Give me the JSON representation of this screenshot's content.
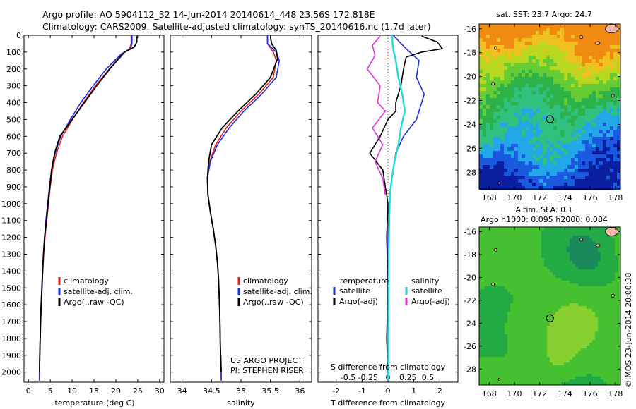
{
  "header": {
    "line1": "Argo profile: AO 5904112_32 14-Jun-2014 20140614_448 23.56S 172.818E",
    "line2": "Climatology: CARS2009. Satellite-adjusted climatology: synTS_20140616.nc (1.7d later)"
  },
  "colors": {
    "climatology": "#e8201a",
    "satellite": "#1a30e0",
    "argo": "#000000",
    "temp_diff_sat": "#1a30e0",
    "sal_diff_sat": "#23d8d8",
    "sal_diff_argo": "#e030e0",
    "sst_map_palette": [
      "#0a1ea0",
      "#1a5ae0",
      "#22a8e8",
      "#30c080",
      "#2db24a",
      "#66cc33",
      "#b8d820",
      "#f0c020",
      "#f08a10"
    ],
    "sla_map_palette": [
      "#1a8a5a",
      "#22aa44",
      "#44c030",
      "#88d030",
      "#c8d830",
      "#f0c030"
    ],
    "land": "#f5b8a8"
  },
  "chart_data": [
    {
      "id": "temperature",
      "type": "line",
      "xlabel": "temperature (deg C)",
      "ylabel": "",
      "xlim": [
        -1,
        31
      ],
      "ylim": [
        2060,
        0
      ],
      "x_ticks": [
        "0",
        "5",
        "10",
        "15",
        "20",
        "25",
        "30"
      ],
      "y_ticks": [
        "0",
        "100",
        "200",
        "300",
        "400",
        "500",
        "600",
        "700",
        "800",
        "900",
        "1000",
        "1100",
        "1200",
        "1300",
        "1400",
        "1500",
        "1600",
        "1700",
        "1800",
        "1900",
        "2000"
      ],
      "legend": [
        "climatology",
        "satellite-adj. clim.",
        "Argo(..raw -QC)"
      ],
      "series": [
        {
          "name": "climatology",
          "key": "climatology",
          "points": [
            [
              23.5,
              0
            ],
            [
              23.5,
              50
            ],
            [
              23.1,
              80
            ],
            [
              21.5,
              110
            ],
            [
              18.5,
              200
            ],
            [
              15.3,
              300
            ],
            [
              12.6,
              400
            ],
            [
              10.1,
              500
            ],
            [
              7.8,
              600
            ],
            [
              6.4,
              700
            ],
            [
              5.5,
              800
            ],
            [
              5.0,
              900
            ],
            [
              4.6,
              1000
            ],
            [
              4.2,
              1100
            ],
            [
              3.8,
              1200
            ],
            [
              3.5,
              1300
            ],
            [
              3.3,
              1400
            ],
            [
              3.1,
              1500
            ],
            [
              2.9,
              1600
            ],
            [
              2.8,
              1700
            ],
            [
              2.7,
              1800
            ],
            [
              2.6,
              1900
            ],
            [
              2.55,
              2000
            ],
            [
              2.5,
              2050
            ]
          ]
        },
        {
          "name": "satellite-adj. clim.",
          "key": "satellite",
          "points": [
            [
              23.7,
              0
            ],
            [
              23.7,
              50
            ],
            [
              23.3,
              80
            ],
            [
              21.3,
              110
            ],
            [
              17.8,
              200
            ],
            [
              14.8,
              300
            ],
            [
              12.0,
              400
            ],
            [
              9.6,
              500
            ],
            [
              7.4,
              600
            ],
            [
              6.1,
              700
            ],
            [
              5.3,
              800
            ],
            [
              4.8,
              900
            ],
            [
              4.4,
              1000
            ],
            [
              4.0,
              1100
            ],
            [
              3.7,
              1200
            ],
            [
              3.45,
              1300
            ],
            [
              3.25,
              1400
            ],
            [
              3.05,
              1500
            ],
            [
              2.9,
              1600
            ],
            [
              2.78,
              1700
            ],
            [
              2.68,
              1800
            ],
            [
              2.58,
              1900
            ],
            [
              2.52,
              2000
            ],
            [
              2.5,
              2050
            ]
          ]
        },
        {
          "name": "Argo(..raw -QC)",
          "key": "argo",
          "points": [
            [
              24.8,
              5
            ],
            [
              24.8,
              40
            ],
            [
              24.2,
              70
            ],
            [
              22.0,
              100
            ],
            [
              18.6,
              200
            ],
            [
              15.6,
              300
            ],
            [
              12.8,
              400
            ],
            [
              10.0,
              500
            ],
            [
              7.2,
              600
            ],
            [
              6.0,
              700
            ],
            [
              5.3,
              800
            ],
            [
              4.9,
              900
            ],
            [
              4.5,
              1000
            ],
            [
              4.1,
              1100
            ],
            [
              3.7,
              1200
            ],
            [
              3.45,
              1300
            ],
            [
              3.25,
              1400
            ],
            [
              3.1,
              1500
            ],
            [
              2.95,
              1600
            ],
            [
              2.8,
              1700
            ],
            [
              2.7,
              1800
            ],
            [
              2.6,
              1900
            ],
            [
              2.55,
              2000
            ]
          ]
        }
      ]
    },
    {
      "id": "salinity",
      "type": "line",
      "xlabel": "salinity",
      "xlim": [
        33.8,
        36.2
      ],
      "ylim": [
        2060,
        0
      ],
      "x_ticks": [
        "34",
        "34.5",
        "35",
        "35.5",
        "36"
      ],
      "legend": [
        "climatology",
        "satellite-adj. clim.",
        "Argo(..raw -QC)"
      ],
      "annotation": [
        "US ARGO PROJECT",
        "PI: STEPHEN RISER"
      ],
      "series": [
        {
          "name": "climatology",
          "key": "climatology",
          "points": [
            [
              35.45,
              0
            ],
            [
              35.45,
              50
            ],
            [
              35.55,
              100
            ],
            [
              35.6,
              150
            ],
            [
              35.55,
              250
            ],
            [
              35.3,
              350
            ],
            [
              35.0,
              450
            ],
            [
              34.75,
              550
            ],
            [
              34.57,
              650
            ],
            [
              34.47,
              750
            ],
            [
              34.43,
              850
            ],
            [
              34.44,
              950
            ],
            [
              34.48,
              1050
            ],
            [
              34.53,
              1150
            ],
            [
              34.57,
              1250
            ],
            [
              34.6,
              1350
            ],
            [
              34.62,
              1450
            ],
            [
              34.63,
              1550
            ],
            [
              34.64,
              1650
            ],
            [
              34.645,
              1750
            ],
            [
              34.65,
              1850
            ],
            [
              34.66,
              1950
            ],
            [
              34.665,
              2050
            ]
          ]
        },
        {
          "name": "satellite-adj. clim.",
          "key": "satellite",
          "points": [
            [
              35.45,
              0
            ],
            [
              35.45,
              50
            ],
            [
              35.6,
              100
            ],
            [
              35.65,
              150
            ],
            [
              35.6,
              250
            ],
            [
              35.35,
              350
            ],
            [
              35.05,
              450
            ],
            [
              34.8,
              550
            ],
            [
              34.6,
              650
            ],
            [
              34.48,
              750
            ],
            [
              34.43,
              850
            ],
            [
              34.44,
              950
            ],
            [
              34.48,
              1050
            ],
            [
              34.53,
              1150
            ],
            [
              34.57,
              1250
            ],
            [
              34.6,
              1350
            ],
            [
              34.62,
              1450
            ],
            [
              34.63,
              1550
            ],
            [
              34.64,
              1650
            ],
            [
              34.645,
              1750
            ],
            [
              34.65,
              1850
            ],
            [
              34.66,
              1950
            ],
            [
              34.665,
              2050
            ]
          ]
        },
        {
          "name": "Argo(..raw -QC)",
          "key": "argo",
          "points": [
            [
              35.5,
              10
            ],
            [
              35.52,
              50
            ],
            [
              35.6,
              90
            ],
            [
              35.62,
              140
            ],
            [
              35.5,
              250
            ],
            [
              35.25,
              350
            ],
            [
              34.95,
              450
            ],
            [
              34.68,
              550
            ],
            [
              34.5,
              650
            ],
            [
              34.45,
              750
            ],
            [
              34.43,
              850
            ],
            [
              34.44,
              950
            ],
            [
              34.48,
              1050
            ],
            [
              34.53,
              1150
            ],
            [
              34.57,
              1250
            ],
            [
              34.6,
              1350
            ],
            [
              34.62,
              1450
            ],
            [
              34.63,
              1550
            ],
            [
              34.64,
              1650
            ],
            [
              34.645,
              1750
            ],
            [
              34.65,
              1850
            ],
            [
              34.66,
              1950
            ],
            [
              34.665,
              2000
            ]
          ]
        }
      ]
    },
    {
      "id": "differences",
      "type": "line",
      "xlabel": "T difference from climatology",
      "top_xlabel": "S difference from climatology",
      "xlim": [
        -2.7,
        2.7
      ],
      "ylim": [
        2060,
        0
      ],
      "x_ticks": [
        "-2",
        "-1",
        "0",
        "1",
        "2"
      ],
      "top_ticks": [
        "-0.5",
        "-0.25",
        "0",
        "0.25",
        "0.5"
      ],
      "legend_headers": [
        "temperature",
        "salinity"
      ],
      "legend": [
        "satellite",
        "Argo(-adj)",
        "satellite",
        "Argo(-adj)"
      ],
      "series": [
        {
          "name": "satellite",
          "key": "temp_diff_sat",
          "points": [
            [
              0.2,
              0
            ],
            [
              0.7,
              80
            ],
            [
              1.2,
              150
            ],
            [
              1.1,
              250
            ],
            [
              1.4,
              350
            ],
            [
              1.2,
              450
            ],
            [
              1.1,
              500
            ],
            [
              0.6,
              600
            ],
            [
              0.3,
              700
            ],
            [
              0.2,
              800
            ],
            [
              0.1,
              900
            ],
            [
              0.05,
              1000
            ],
            [
              0.0,
              1200
            ],
            [
              0.0,
              1500
            ],
            [
              0.0,
              1800
            ],
            [
              0.0,
              2050
            ]
          ]
        },
        {
          "name": "Argo(-adj)",
          "key": "argo",
          "points": [
            [
              1.3,
              5
            ],
            [
              1.9,
              40
            ],
            [
              2.1,
              80
            ],
            [
              1.3,
              100
            ],
            [
              0.7,
              130
            ],
            [
              0.6,
              200
            ],
            [
              0.5,
              300
            ],
            [
              0.3,
              400
            ],
            [
              0.3,
              450
            ],
            [
              0.0,
              500
            ],
            [
              -0.3,
              600
            ],
            [
              -0.7,
              700
            ],
            [
              -0.2,
              800
            ],
            [
              -0.1,
              900
            ],
            [
              0.0,
              1000
            ],
            [
              -0.05,
              1200
            ],
            [
              0.0,
              1500
            ],
            [
              -0.05,
              1800
            ],
            [
              0.0,
              2000
            ]
          ]
        },
        {
          "name": "satellite",
          "key": "sal_diff_sat",
          "points": [
            [
              0.15,
              0
            ],
            [
              0.2,
              80
            ],
            [
              0.3,
              150
            ],
            [
              0.4,
              250
            ],
            [
              0.55,
              350
            ],
            [
              0.65,
              450
            ],
            [
              0.5,
              550
            ],
            [
              0.4,
              650
            ],
            [
              0.25,
              750
            ],
            [
              0.15,
              850
            ],
            [
              0.08,
              950
            ],
            [
              0.05,
              1100
            ],
            [
              0.03,
              1300
            ],
            [
              0.02,
              1600
            ],
            [
              0.01,
              2050
            ]
          ]
        },
        {
          "name": "Argo(-adj)",
          "key": "sal_diff_argo",
          "points": [
            [
              -0.3,
              5
            ],
            [
              -0.6,
              60
            ],
            [
              -0.5,
              120
            ],
            [
              -0.8,
              200
            ],
            [
              -0.3,
              300
            ],
            [
              -0.4,
              400
            ],
            [
              -0.1,
              450
            ],
            [
              -0.6,
              550
            ],
            [
              -0.2,
              650
            ],
            [
              -0.5,
              750
            ],
            [
              -0.2,
              850
            ],
            [
              -0.1,
              950
            ]
          ]
        }
      ]
    },
    {
      "id": "sst_map",
      "type": "heatmap",
      "title": "sat. SST: 23.7 Argo: 24.7",
      "xlim": [
        167.2,
        178.4
      ],
      "ylim": [
        -29.4,
        -15.6
      ],
      "x_ticks": [
        "168",
        "170",
        "172",
        "174",
        "176",
        "178"
      ],
      "y_ticks": [
        "-16",
        "-18",
        "-20",
        "-22",
        "-24",
        "-26",
        "-28"
      ],
      "marker": {
        "lon": 172.818,
        "lat": -23.56
      }
    },
    {
      "id": "sla_map",
      "type": "heatmap",
      "title_lines": [
        "Altim. SLA: 0.1",
        "Argo h1000: 0.095 h2000: 0.084"
      ],
      "xlim": [
        167.2,
        178.4
      ],
      "ylim": [
        -29.4,
        -15.6
      ],
      "x_ticks": [
        "168",
        "170",
        "172",
        "174",
        "176",
        "178"
      ],
      "y_ticks": [
        "-16",
        "-18",
        "-20",
        "-22",
        "-24",
        "-26",
        "-28"
      ],
      "marker": {
        "lon": 172.818,
        "lat": -23.56
      }
    }
  ],
  "side_label": "©IMOS 23-Jun-2014 20:00:38"
}
